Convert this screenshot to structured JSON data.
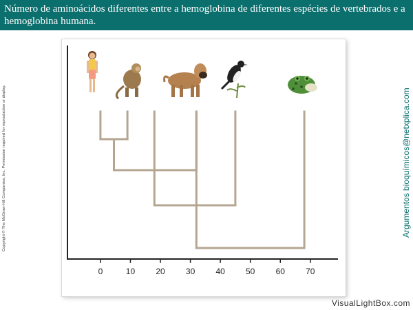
{
  "header": {
    "title": "Número de aminoácidos diferentes entre a hemoglobina de diferentes espécies de vertebrados e a hemoglobina humana."
  },
  "copyright": "Copyright © The McGraw-Hill Companies, Inc. Permission required for reproduction or display.",
  "side_credit": "Argumentos bioquímicos@netxplica.com",
  "watermark": "VisualLightBox.com",
  "colors": {
    "header_bg": "#0b6f6e",
    "branch": "#b5a692",
    "axis": "#222222"
  },
  "icons": [
    "human-icon",
    "monkey-icon",
    "dog-icon",
    "bird-icon",
    "frog-icon"
  ],
  "chart_data": {
    "type": "dendrogram",
    "title": "",
    "xlabel": "",
    "ylabel": "",
    "xlim": [
      -11,
      79
    ],
    "x_ticks": [
      0,
      10,
      20,
      30,
      40,
      50,
      60,
      70
    ],
    "x_tick_labels": [
      "0",
      "10",
      "20",
      "30",
      "40",
      "50",
      "60",
      "70"
    ],
    "leaves": [
      {
        "name": "human",
        "x": 0
      },
      {
        "name": "monkey",
        "x": 9
      },
      {
        "name": "dog",
        "x": 32
      },
      {
        "name": "bird",
        "x": 45
      },
      {
        "name": "frog",
        "x": 68
      }
    ],
    "joins": [
      {
        "from": [
          0,
          9
        ],
        "level": 1
      },
      {
        "from": [
          4.5,
          32
        ],
        "level": 2
      },
      {
        "from": [
          18,
          45
        ],
        "level": 3
      },
      {
        "from": [
          32,
          68
        ],
        "level": 4
      }
    ]
  }
}
